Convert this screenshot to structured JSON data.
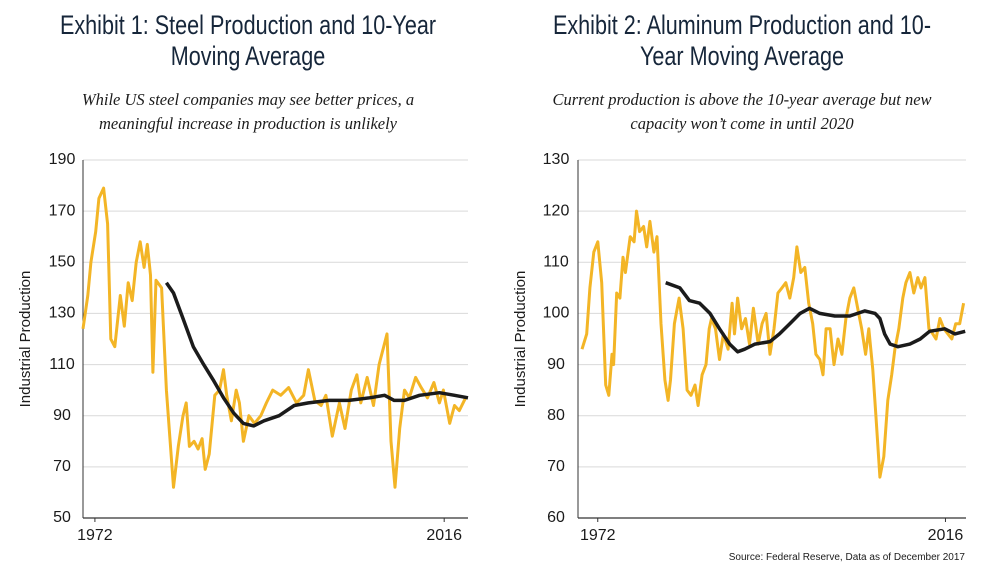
{
  "chart_data": [
    {
      "type": "line",
      "title": [
        "Exhibit 1: Steel Production and 10-Year",
        "Moving Average"
      ],
      "subtitle": [
        "While US steel companies may see better prices, a",
        "meaningful increase in production is unlikely"
      ],
      "y_label": "Industrial Production",
      "xlim": [
        1970.5,
        2019.0
      ],
      "xticks": [
        1972,
        2016
      ],
      "ylim": [
        50,
        190
      ],
      "yticks": [
        50,
        70,
        90,
        110,
        130,
        150,
        170,
        190
      ],
      "grid": true,
      "series": [
        {
          "color": "#f3b526",
          "x": [
            1970.5,
            1971.1,
            1971.5,
            1972.1,
            1972.5,
            1973.1,
            1973.6,
            1974.0,
            1974.5,
            1975.2,
            1975.7,
            1976.2,
            1976.7,
            1977.2,
            1977.7,
            1978.2,
            1978.6,
            1979.0,
            1979.3,
            1979.7,
            1980.4,
            1981.0,
            1981.9,
            1982.5,
            1983.1,
            1983.5,
            1983.9,
            1984.5,
            1985.0,
            1985.5,
            1985.9,
            1986.4,
            1987.1,
            1987.7,
            1988.2,
            1988.6,
            1989.2,
            1989.8,
            1990.2,
            1990.7,
            1991.4,
            1992.1,
            1992.9,
            1993.6,
            1994.4,
            1995.4,
            1996.4,
            1997.4,
            1998.3,
            1998.9,
            1999.7,
            2000.5,
            2001.1,
            2001.9,
            2002.8,
            2003.5,
            2004.3,
            2005.0,
            2005.5,
            2006.3,
            2007.1,
            2007.8,
            2008.8,
            2009.3,
            2009.8,
            2010.4,
            2011.0,
            2011.6,
            2012.4,
            2013.1,
            2013.9,
            2014.7,
            2015.4,
            2015.9,
            2016.7,
            2017.3,
            2017.9,
            2018.7
          ],
          "values": [
            124,
            137,
            150,
            162,
            175,
            179,
            165,
            120,
            117,
            137,
            125,
            142,
            135,
            150,
            158,
            148,
            157,
            145,
            107,
            143,
            140,
            100,
            62,
            78,
            90,
            95,
            78,
            80,
            77,
            81,
            69,
            75,
            98,
            100,
            108,
            98,
            88,
            100,
            95,
            80,
            90,
            87,
            90,
            95,
            100,
            98,
            101,
            95,
            98,
            108,
            96,
            94,
            98,
            82,
            95,
            85,
            100,
            106,
            95,
            105,
            94,
            110,
            122,
            80,
            62,
            85,
            100,
            97,
            105,
            101,
            97,
            103,
            95,
            100,
            87,
            94,
            92,
            97
          ]
        },
        {
          "color": "#1b1b1b",
          "x": [
            1981.0,
            1981.9,
            1983.1,
            1984.4,
            1985.7,
            1986.9,
            1988.2,
            1989.5,
            1990.7,
            1992.0,
            1993.3,
            1995.2,
            1997.1,
            1998.9,
            2001.5,
            2004.0,
            2006.6,
            2008.5,
            2009.7,
            2011.0,
            2012.9,
            2015.4,
            2017.3,
            2019.0
          ],
          "values": [
            142,
            138,
            128,
            117,
            110,
            104,
            97,
            91,
            87,
            86,
            88,
            90,
            94,
            95,
            96,
            96,
            97,
            98,
            96,
            96,
            98,
            99,
            98,
            97
          ]
        }
      ]
    },
    {
      "type": "line",
      "title": [
        "Exhibit 2: Aluminum Production and 10-",
        "Year Moving Average"
      ],
      "subtitle": [
        "Current production is above the 10-year average but new",
        "capacity won’t come in until 2020"
      ],
      "y_label": "Industrial Production",
      "xlim": [
        1969.5,
        2018.6
      ],
      "xticks": [
        1972,
        2016
      ],
      "ylim": [
        60,
        130
      ],
      "yticks": [
        60,
        70,
        80,
        90,
        100,
        110,
        120,
        130
      ],
      "grid": true,
      "series": [
        {
          "color": "#f3b526",
          "x": [
            1970.0,
            1970.6,
            1971.0,
            1971.5,
            1972.0,
            1972.5,
            1973.0,
            1973.4,
            1973.8,
            1974.0,
            1974.4,
            1974.8,
            1975.2,
            1975.5,
            1976.1,
            1976.6,
            1976.9,
            1977.3,
            1977.8,
            1978.2,
            1978.6,
            1979.1,
            1979.5,
            1980.0,
            1980.5,
            1980.9,
            1981.2,
            1981.7,
            1982.3,
            1982.8,
            1983.3,
            1983.8,
            1984.3,
            1984.7,
            1985.2,
            1985.7,
            1986.1,
            1986.4,
            1986.9,
            1987.4,
            1987.9,
            1988.5,
            1989.0,
            1989.3,
            1989.7,
            1990.2,
            1990.7,
            1991.2,
            1991.7,
            1992.3,
            1992.8,
            1993.3,
            1993.8,
            1994.3,
            1994.8,
            1995.3,
            1995.8,
            1996.3,
            1996.8,
            1997.2,
            1997.7,
            1998.2,
            1998.7,
            1999.2,
            1999.6,
            2000.1,
            2000.5,
            2000.9,
            2001.4,
            2001.9,
            2002.4,
            2002.9,
            2003.4,
            2003.9,
            2004.4,
            2004.9,
            2005.4,
            2005.9,
            2006.3,
            2006.8,
            2007.2,
            2007.7,
            2008.2,
            2008.7,
            2009.2,
            2009.6,
            2010.1,
            2010.6,
            2011.0,
            2011.5,
            2012.0,
            2012.5,
            2012.9,
            2013.4,
            2013.9,
            2014.4,
            2014.8,
            2015.3,
            2015.8,
            2016.3,
            2016.8,
            2017.3,
            2017.8,
            2018.3
          ],
          "values": [
            93,
            96,
            105,
            112,
            114,
            106,
            86,
            84,
            92,
            90,
            104,
            103,
            111,
            108,
            115,
            114,
            120,
            116,
            117,
            113,
            118,
            112,
            115,
            98,
            87,
            83,
            87,
            98,
            103,
            97,
            85,
            84,
            86,
            82,
            88,
            90,
            97,
            99,
            97,
            91,
            96,
            93,
            102,
            96,
            103,
            97,
            99,
            94,
            101,
            94,
            98,
            100,
            92,
            97,
            104,
            105,
            106,
            103,
            107,
            113,
            108,
            109,
            102,
            98,
            92,
            91,
            88,
            97,
            97,
            90,
            95,
            92,
            99,
            103,
            105,
            101,
            97,
            92,
            97,
            89,
            80,
            68,
            72,
            83,
            88,
            93,
            97,
            103,
            106,
            108,
            104,
            107,
            105,
            107,
            97,
            96,
            95,
            99,
            97,
            96,
            95,
            98,
            98,
            102
          ]
        },
        {
          "color": "#1b1b1b",
          "x": [
            1980.6,
            1982.4,
            1983.6,
            1984.9,
            1986.2,
            1987.4,
            1988.7,
            1989.7,
            1990.6,
            1991.9,
            1993.8,
            1995.0,
            1996.3,
            1997.6,
            1998.8,
            2000.1,
            2002.0,
            2003.9,
            2005.8,
            2007.1,
            2007.7,
            2008.3,
            2009.0,
            2010.0,
            2011.5,
            2012.8,
            2014.0,
            2015.9,
            2017.2,
            2018.5
          ],
          "values": [
            106,
            105,
            102.5,
            102,
            100,
            97,
            94,
            92.5,
            93,
            94,
            94.5,
            96,
            98,
            100,
            101,
            100,
            99.5,
            99.5,
            100.5,
            100,
            99,
            96,
            94,
            93.5,
            94,
            95,
            96.5,
            97,
            96,
            96.5
          ]
        }
      ]
    }
  ],
  "source": "Source: Federal Reserve, Data as of December 2017"
}
